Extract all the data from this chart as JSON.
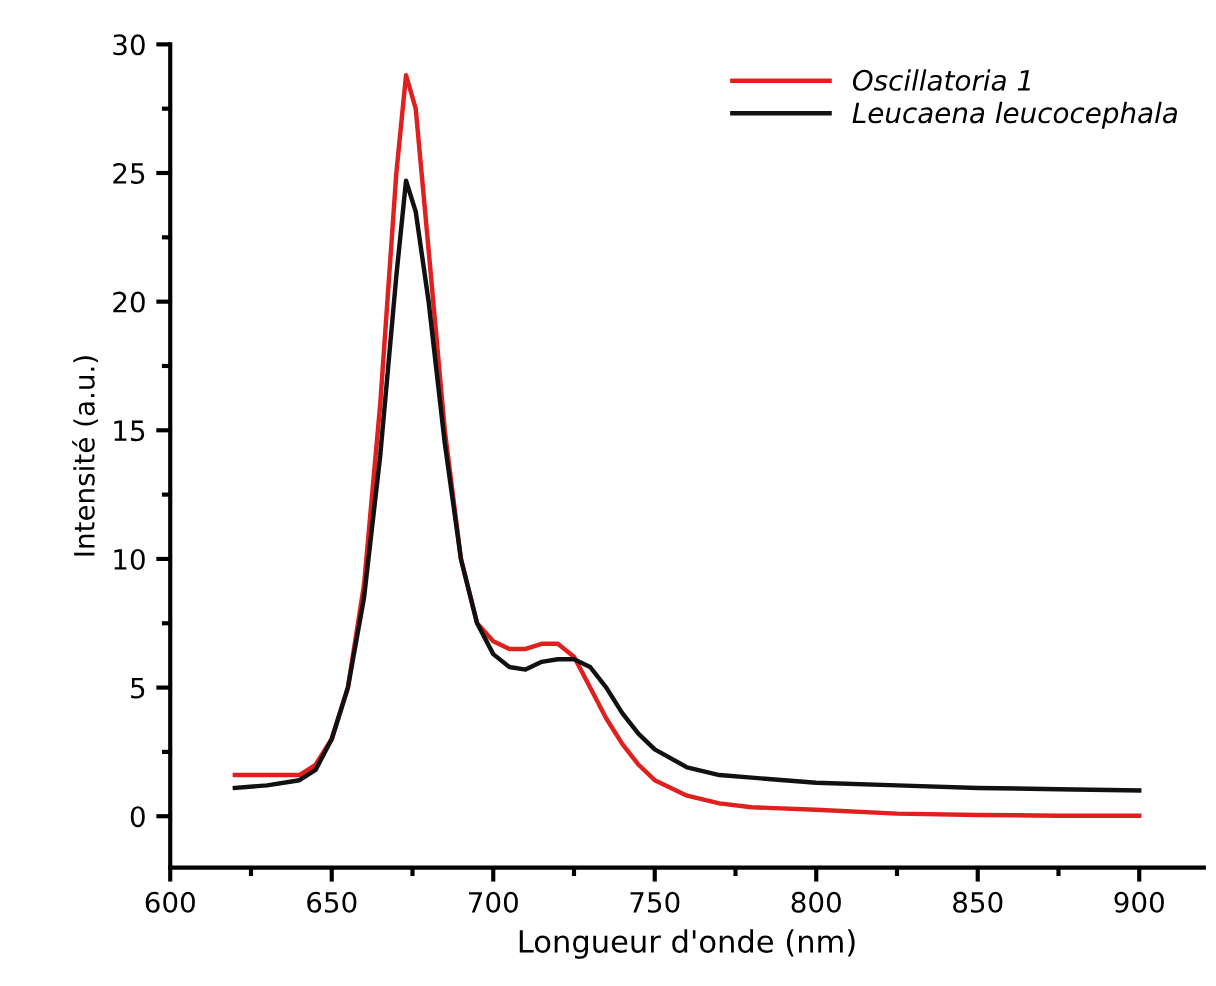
{
  "chart_data": {
    "type": "line",
    "xlabel": "Longueur d'onde (nm)",
    "ylabel": "Intensité (a.u.)",
    "x": [
      620,
      630,
      640,
      645,
      650,
      655,
      660,
      665,
      670,
      673,
      676,
      680,
      685,
      690,
      695,
      700,
      705,
      710,
      715,
      720,
      725,
      730,
      735,
      740,
      745,
      750,
      760,
      770,
      780,
      800,
      825,
      850,
      875,
      900
    ],
    "series": [
      {
        "name": "Oscillatoria 1",
        "color": "#e0201e",
        "values": [
          1.6,
          1.6,
          1.6,
          2,
          3,
          5,
          9,
          16,
          25,
          28.8,
          27.5,
          22,
          15,
          10,
          7.5,
          6.8,
          6.5,
          6.5,
          6.7,
          6.7,
          6.2,
          5,
          3.8,
          2.8,
          2,
          1.4,
          0.8,
          0.5,
          0.35,
          0.25,
          0.1,
          0.05,
          0.02,
          0.02
        ]
      },
      {
        "name": "Leucaena leucocephala",
        "color": "#111111",
        "values": [
          1.1,
          1.2,
          1.4,
          1.8,
          3,
          5,
          8.5,
          14,
          21,
          24.7,
          23.5,
          20,
          14.5,
          10,
          7.5,
          6.3,
          5.8,
          5.7,
          6.0,
          6.1,
          6.1,
          5.8,
          5,
          4,
          3.2,
          2.6,
          1.9,
          1.6,
          1.5,
          1.3,
          1.2,
          1.1,
          1.05,
          1.0
        ]
      }
    ],
    "xlim": [
      600,
      920
    ],
    "xticks": [
      600,
      650,
      700,
      750,
      800,
      850,
      900
    ],
    "ylim": [
      -2,
      30
    ],
    "yticks": [
      0,
      5,
      10,
      15,
      20,
      25,
      30
    ],
    "grid": false,
    "legend": "top right",
    "marker": "none",
    "line_style": "solid"
  }
}
